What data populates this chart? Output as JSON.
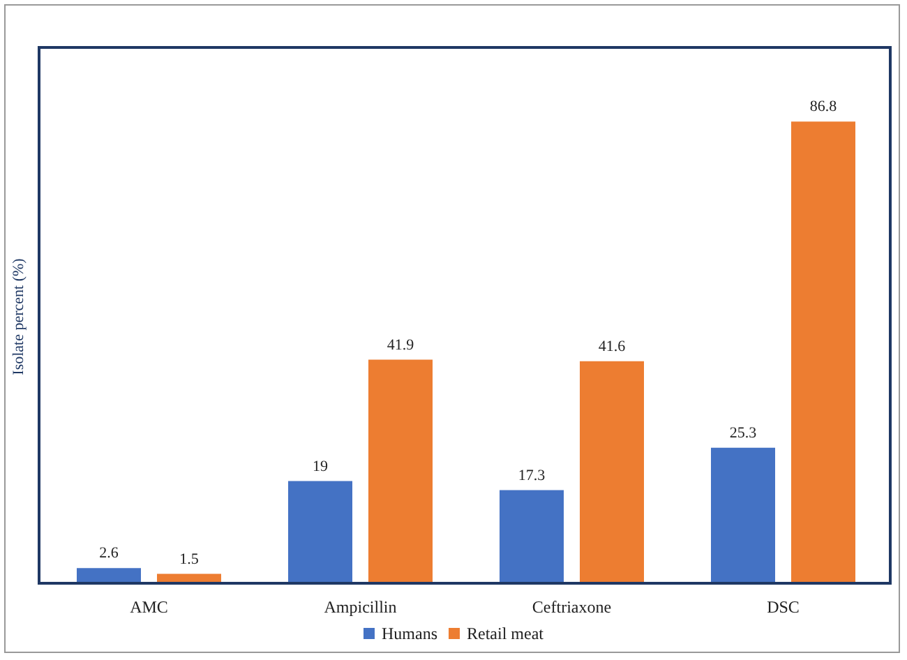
{
  "chart_data": {
    "type": "bar",
    "ylabel": "Isolate percent (%)",
    "categories": [
      "AMC",
      "Ampicillin",
      "Ceftriaxone",
      "DSC"
    ],
    "series": [
      {
        "name": "Humans",
        "color": "#4472c4",
        "values": [
          2.6,
          19,
          17.3,
          25.3
        ]
      },
      {
        "name": "Retail meat",
        "color": "#ed7d31",
        "values": [
          1.5,
          41.9,
          41.6,
          86.8
        ]
      }
    ],
    "data_labels": true,
    "legend": "bottom",
    "grid": false
  }
}
